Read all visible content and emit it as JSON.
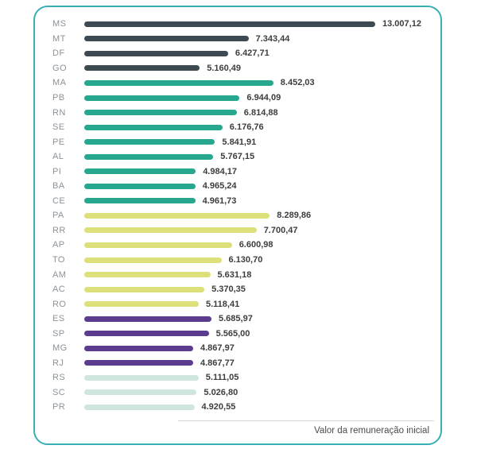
{
  "chart_data": {
    "type": "bar",
    "orientation": "horizontal",
    "title": "",
    "xlabel": "Valor da remuneração inicial",
    "ylabel": "",
    "xlim": [
      0,
      13007.12
    ],
    "max_value": 13007.12,
    "grid": false,
    "legend": "none",
    "palette": {
      "dark_slate": "#3E4A52",
      "teal": "#27A78E",
      "yellow_green": "#DCE07A",
      "purple": "#5C3C8E",
      "pale_mint": "#CFE6DF"
    },
    "frame_border_color": "#38AEB6",
    "bars": [
      {
        "label": "MS",
        "value": 13007.12,
        "value_label": "13.007,12",
        "color": "#3E4A52"
      },
      {
        "label": "MT",
        "value": 7343.44,
        "value_label": "7.343,44",
        "color": "#3E4A52"
      },
      {
        "label": "DF",
        "value": 6427.71,
        "value_label": "6.427,71",
        "color": "#3E4A52"
      },
      {
        "label": "GO",
        "value": 5160.49,
        "value_label": "5.160,49",
        "color": "#3E4A52"
      },
      {
        "label": "MA",
        "value": 8452.03,
        "value_label": "8.452,03",
        "color": "#27A78E"
      },
      {
        "label": "PB",
        "value": 6944.09,
        "value_label": "6.944,09",
        "color": "#27A78E"
      },
      {
        "label": "RN",
        "value": 6814.88,
        "value_label": "6.814,88",
        "color": "#27A78E"
      },
      {
        "label": "SE",
        "value": 6176.76,
        "value_label": "6.176,76",
        "color": "#27A78E"
      },
      {
        "label": "PE",
        "value": 5841.91,
        "value_label": "5.841,91",
        "color": "#27A78E"
      },
      {
        "label": "AL",
        "value": 5767.15,
        "value_label": "5.767,15",
        "color": "#27A78E"
      },
      {
        "label": "PI",
        "value": 4984.17,
        "value_label": "4.984,17",
        "color": "#27A78E"
      },
      {
        "label": "BA",
        "value": 4965.24,
        "value_label": "4.965,24",
        "color": "#27A78E"
      },
      {
        "label": "CE",
        "value": 4961.73,
        "value_label": "4.961,73",
        "color": "#27A78E"
      },
      {
        "label": "PA",
        "value": 8289.86,
        "value_label": "8.289,86",
        "color": "#DCE07A"
      },
      {
        "label": "RR",
        "value": 7700.47,
        "value_label": "7.700,47",
        "color": "#DCE07A"
      },
      {
        "label": "AP",
        "value": 6600.98,
        "value_label": "6.600,98",
        "color": "#DCE07A"
      },
      {
        "label": "TO",
        "value": 6130.7,
        "value_label": "6.130,70",
        "color": "#DCE07A"
      },
      {
        "label": "AM",
        "value": 5631.18,
        "value_label": "5.631,18",
        "color": "#DCE07A"
      },
      {
        "label": "AC",
        "value": 5370.35,
        "value_label": "5.370,35",
        "color": "#DCE07A"
      },
      {
        "label": "RO",
        "value": 5118.41,
        "value_label": "5.118,41",
        "color": "#DCE07A"
      },
      {
        "label": "ES",
        "value": 5685.97,
        "value_label": "5.685,97",
        "color": "#5C3C8E"
      },
      {
        "label": "SP",
        "value": 5565.0,
        "value_label": "5.565,00",
        "color": "#5C3C8E"
      },
      {
        "label": "MG",
        "value": 4867.97,
        "value_label": "4.867,97",
        "color": "#5C3C8E"
      },
      {
        "label": "RJ",
        "value": 4867.77,
        "value_label": "4.867,77",
        "color": "#5C3C8E"
      },
      {
        "label": "RS",
        "value": 5111.05,
        "value_label": "5.111,05",
        "color": "#CFE6DF"
      },
      {
        "label": "SC",
        "value": 5026.8,
        "value_label": "5.026,80",
        "color": "#CFE6DF"
      },
      {
        "label": "PR",
        "value": 4920.55,
        "value_label": "4.920,55",
        "color": "#CFE6DF"
      }
    ]
  },
  "footer": {
    "axis_label": "Valor da remuneração inicial"
  }
}
